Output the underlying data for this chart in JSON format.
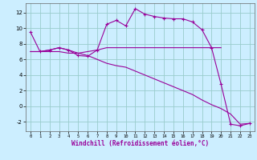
{
  "xlabel": "Windchill (Refroidissement éolien,°C)",
  "background_color": "#cceeff",
  "grid_color": "#99cccc",
  "line_color": "#990099",
  "xlim": [
    -0.5,
    23.5
  ],
  "ylim": [
    -3.2,
    13.2
  ],
  "xticks": [
    0,
    1,
    2,
    3,
    4,
    5,
    6,
    7,
    8,
    9,
    10,
    11,
    12,
    13,
    14,
    15,
    16,
    17,
    18,
    19,
    20,
    21,
    22,
    23
  ],
  "yticks": [
    -2,
    0,
    2,
    4,
    6,
    8,
    10,
    12
  ],
  "line1_x": [
    0,
    1,
    2,
    3,
    4,
    5,
    6,
    7,
    8,
    9,
    10,
    11,
    12,
    13,
    14,
    15,
    16,
    17,
    18,
    19,
    20,
    21,
    22,
    23
  ],
  "line1_y": [
    9.5,
    7.0,
    7.2,
    7.5,
    7.2,
    6.5,
    6.4,
    7.2,
    10.5,
    11.0,
    10.3,
    12.5,
    11.8,
    11.5,
    11.3,
    11.2,
    11.2,
    10.8,
    9.8,
    7.5,
    2.8,
    -2.3,
    -2.5,
    -2.2
  ],
  "line2_x": [
    0,
    1,
    2,
    3,
    4,
    5,
    6,
    7,
    8,
    9,
    10,
    11,
    12,
    13,
    14,
    15,
    16,
    17,
    18,
    19,
    20
  ],
  "line2_y": [
    7.0,
    7.0,
    7.2,
    7.5,
    7.2,
    6.8,
    7.0,
    7.2,
    7.5,
    7.5,
    7.5,
    7.5,
    7.5,
    7.5,
    7.5,
    7.5,
    7.5,
    7.5,
    7.5,
    7.5,
    7.5
  ],
  "line3_x": [
    0,
    1,
    2,
    3,
    4,
    5,
    6,
    7,
    8,
    9,
    10,
    11,
    12,
    13,
    14,
    15,
    16,
    17,
    18,
    19,
    20,
    21,
    22,
    23
  ],
  "line3_y": [
    7.0,
    7.0,
    7.0,
    7.0,
    6.8,
    6.8,
    6.5,
    6.0,
    5.5,
    5.2,
    5.0,
    4.5,
    4.0,
    3.5,
    3.0,
    2.5,
    2.0,
    1.5,
    0.8,
    0.2,
    -0.3,
    -1.0,
    -2.3,
    -2.2
  ]
}
